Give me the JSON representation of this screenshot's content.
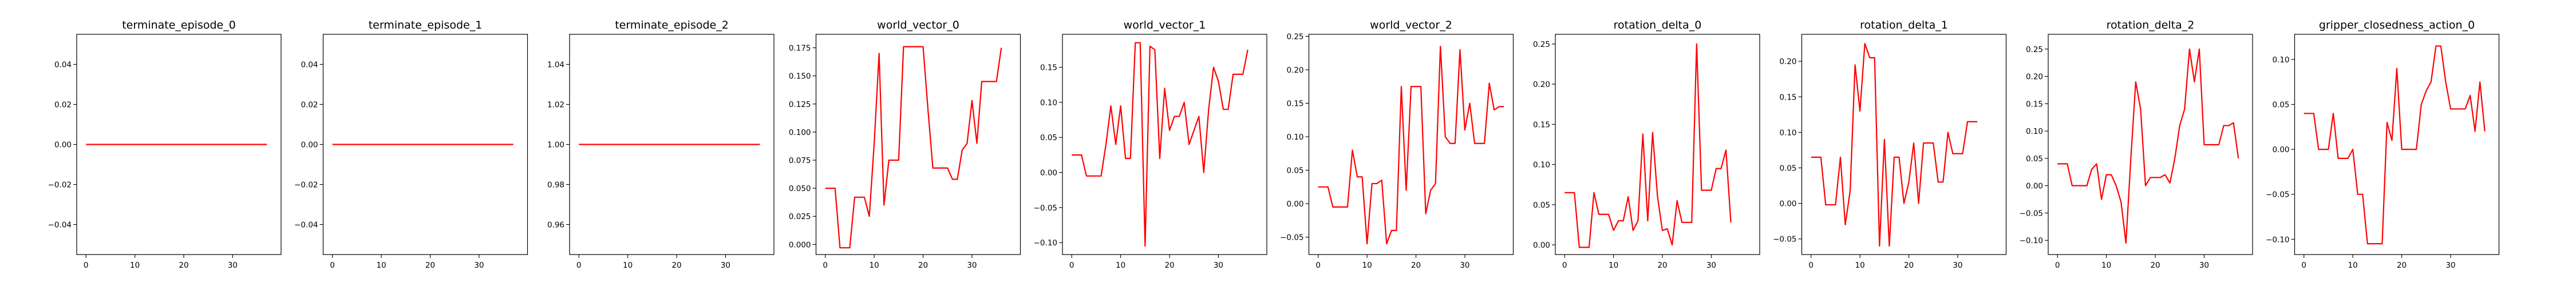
{
  "series_color": "#ff0000",
  "chart_data": [
    {
      "type": "line",
      "title": "terminate_episode_0",
      "ylim": [
        -0.055,
        0.055
      ],
      "xlim": [
        -1.9,
        39.9
      ],
      "yticks": [
        -0.04,
        -0.02,
        0.0,
        0.02,
        0.04
      ],
      "ytick_labels": [
        "−0.04",
        "−0.02",
        "0.00",
        "0.02",
        "0.04"
      ],
      "xticks": [
        0,
        10,
        20,
        30
      ],
      "xtick_labels": [
        "0",
        "10",
        "20",
        "30"
      ],
      "values": [
        0,
        0,
        0,
        0,
        0,
        0,
        0,
        0,
        0,
        0,
        0,
        0,
        0,
        0,
        0,
        0,
        0,
        0,
        0,
        0,
        0,
        0,
        0,
        0,
        0,
        0,
        0,
        0,
        0,
        0,
        0,
        0,
        0,
        0,
        0,
        0,
        0,
        0
      ]
    },
    {
      "type": "line",
      "title": "terminate_episode_1",
      "ylim": [
        -0.055,
        0.055
      ],
      "xlim": [
        -1.9,
        39.9
      ],
      "yticks": [
        -0.04,
        -0.02,
        0.0,
        0.02,
        0.04
      ],
      "ytick_labels": [
        "−0.04",
        "−0.02",
        "0.00",
        "0.02",
        "0.04"
      ],
      "xticks": [
        0,
        10,
        20,
        30
      ],
      "xtick_labels": [
        "0",
        "10",
        "20",
        "30"
      ],
      "values": [
        0,
        0,
        0,
        0,
        0,
        0,
        0,
        0,
        0,
        0,
        0,
        0,
        0,
        0,
        0,
        0,
        0,
        0,
        0,
        0,
        0,
        0,
        0,
        0,
        0,
        0,
        0,
        0,
        0,
        0,
        0,
        0,
        0,
        0,
        0,
        0,
        0,
        0
      ]
    },
    {
      "type": "line",
      "title": "terminate_episode_2",
      "ylim": [
        0.945,
        1.055
      ],
      "xlim": [
        -1.9,
        39.9
      ],
      "yticks": [
        0.96,
        0.98,
        1.0,
        1.02,
        1.04
      ],
      "ytick_labels": [
        "0.96",
        "0.98",
        "1.00",
        "1.02",
        "1.04"
      ],
      "xticks": [
        0,
        10,
        20,
        30
      ],
      "xtick_labels": [
        "0",
        "10",
        "20",
        "30"
      ],
      "values": [
        1,
        1,
        1,
        1,
        1,
        1,
        1,
        1,
        1,
        1,
        1,
        1,
        1,
        1,
        1,
        1,
        1,
        1,
        1,
        1,
        1,
        1,
        1,
        1,
        1,
        1,
        1,
        1,
        1,
        1,
        1,
        1,
        1,
        1,
        1,
        1,
        1,
        1
      ]
    },
    {
      "type": "line",
      "title": "world_vector_0",
      "ylim": [
        -0.009,
        0.187
      ],
      "xlim": [
        -1.9,
        39.9
      ],
      "yticks": [
        0.0,
        0.025,
        0.05,
        0.075,
        0.1,
        0.125,
        0.15,
        0.175
      ],
      "ytick_labels": [
        "0.000",
        "0.025",
        "0.050",
        "0.075",
        "0.100",
        "0.125",
        "0.150",
        "0.175"
      ],
      "xticks": [
        0,
        10,
        20,
        30
      ],
      "xtick_labels": [
        "0",
        "10",
        "20",
        "30"
      ],
      "values": [
        0.05,
        0.05,
        0.05,
        -0.003,
        -0.003,
        -0.003,
        0.042,
        0.042,
        0.042,
        0.025,
        0.09,
        0.17,
        0.035,
        0.075,
        0.075,
        0.075,
        0.176,
        0.176,
        0.176,
        0.176,
        0.176,
        0.12,
        0.068,
        0.068,
        0.068,
        0.068,
        0.058,
        0.058,
        0.084,
        0.09,
        0.128,
        0.09,
        0.145,
        0.145,
        0.145,
        0.145,
        0.175
      ]
    },
    {
      "type": "line",
      "title": "world_vector_1",
      "ylim": [
        -0.117,
        0.197
      ],
      "xlim": [
        -1.9,
        39.9
      ],
      "yticks": [
        -0.1,
        -0.05,
        0.0,
        0.05,
        0.1,
        0.15
      ],
      "ytick_labels": [
        "−0.10",
        "−0.05",
        "0.00",
        "0.05",
        "0.10",
        "0.15"
      ],
      "xticks": [
        0,
        10,
        20,
        30
      ],
      "xtick_labels": [
        "0",
        "10",
        "20",
        "30"
      ],
      "values": [
        0.025,
        0.025,
        0.025,
        -0.005,
        -0.005,
        -0.005,
        -0.005,
        0.04,
        0.095,
        0.04,
        0.095,
        0.02,
        0.02,
        0.185,
        0.185,
        -0.105,
        0.18,
        0.175,
        0.02,
        0.12,
        0.06,
        0.08,
        0.08,
        0.1,
        0.04,
        0.06,
        0.08,
        0.0,
        0.09,
        0.15,
        0.13,
        0.09,
        0.09,
        0.14,
        0.14,
        0.14,
        0.175
      ]
    },
    {
      "type": "line",
      "title": "world_vector_2",
      "ylim": [
        -0.076,
        0.253
      ],
      "xlim": [
        -1.9,
        39.9
      ],
      "yticks": [
        -0.05,
        0.0,
        0.05,
        0.1,
        0.15,
        0.2,
        0.25
      ],
      "ytick_labels": [
        "−0.05",
        "0.00",
        "0.05",
        "0.10",
        "0.15",
        "0.20",
        "0.25"
      ],
      "xticks": [
        0,
        10,
        20,
        30
      ],
      "xtick_labels": [
        "0",
        "10",
        "20",
        "30"
      ],
      "values": [
        0.025,
        0.025,
        0.025,
        -0.005,
        -0.005,
        -0.005,
        -0.005,
        0.08,
        0.04,
        0.04,
        -0.06,
        0.03,
        0.03,
        0.035,
        -0.06,
        -0.04,
        -0.04,
        0.175,
        0.02,
        0.175,
        0.175,
        0.175,
        -0.015,
        0.02,
        0.03,
        0.235,
        0.1,
        0.09,
        0.09,
        0.23,
        0.11,
        0.15,
        0.09,
        0.09,
        0.09,
        0.18,
        0.14,
        0.145,
        0.145
      ]
    },
    {
      "type": "line",
      "title": "rotation_delta_0",
      "ylim": [
        -0.012,
        0.262
      ],
      "xlim": [
        -1.9,
        39.9
      ],
      "yticks": [
        0.0,
        0.05,
        0.1,
        0.15,
        0.2,
        0.25
      ],
      "ytick_labels": [
        "0.00",
        "0.05",
        "0.10",
        "0.15",
        "0.20",
        "0.25"
      ],
      "xticks": [
        0,
        10,
        20,
        30
      ],
      "xtick_labels": [
        "0",
        "10",
        "20",
        "30"
      ],
      "values": [
        0.065,
        0.065,
        0.065,
        -0.003,
        -0.003,
        -0.003,
        0.065,
        0.038,
        0.038,
        0.038,
        0.018,
        0.03,
        0.03,
        0.06,
        0.018,
        0.03,
        0.138,
        0.03,
        0.14,
        0.06,
        0.018,
        0.02,
        0.0,
        0.055,
        0.028,
        0.028,
        0.028,
        0.25,
        0.068,
        0.068,
        0.068,
        0.095,
        0.095,
        0.118,
        0.028
      ]
    },
    {
      "type": "line",
      "title": "rotation_delta_1",
      "ylim": [
        -0.072,
        0.238
      ],
      "xlim": [
        -1.9,
        39.9
      ],
      "yticks": [
        -0.05,
        0.0,
        0.05,
        0.1,
        0.15,
        0.2
      ],
      "ytick_labels": [
        "−0.05",
        "0.00",
        "0.05",
        "0.10",
        "0.15",
        "0.20"
      ],
      "xticks": [
        0,
        10,
        20,
        30
      ],
      "xtick_labels": [
        "0",
        "10",
        "20",
        "30"
      ],
      "values": [
        0.065,
        0.065,
        0.065,
        -0.002,
        -0.002,
        -0.002,
        0.065,
        -0.03,
        0.018,
        0.195,
        0.13,
        0.225,
        0.205,
        0.205,
        -0.06,
        0.09,
        -0.06,
        0.065,
        0.065,
        0.0,
        0.03,
        0.085,
        0.0,
        0.085,
        0.085,
        0.085,
        0.03,
        0.03,
        0.1,
        0.07,
        0.07,
        0.07,
        0.115,
        0.115,
        0.115
      ]
    },
    {
      "type": "line",
      "title": "rotation_delta_2",
      "ylim": [
        -0.126,
        0.277
      ],
      "xlim": [
        -1.9,
        39.9
      ],
      "yticks": [
        -0.1,
        -0.05,
        0.0,
        0.05,
        0.1,
        0.15,
        0.2,
        0.25
      ],
      "ytick_labels": [
        "−0.10",
        "−0.05",
        "0.00",
        "0.05",
        "0.10",
        "0.15",
        "0.20",
        "0.25"
      ],
      "xticks": [
        0,
        10,
        20,
        30
      ],
      "xtick_labels": [
        "0",
        "10",
        "20",
        "30"
      ],
      "values": [
        0.04,
        0.04,
        0.04,
        0.0,
        0.0,
        0.0,
        0.0,
        0.03,
        0.04,
        -0.025,
        0.02,
        0.02,
        0.0,
        -0.03,
        -0.105,
        0.05,
        0.19,
        0.14,
        0.0,
        0.015,
        0.015,
        0.015,
        0.02,
        0.005,
        0.05,
        0.11,
        0.14,
        0.25,
        0.19,
        0.25,
        0.075,
        0.075,
        0.075,
        0.075,
        0.11,
        0.11,
        0.115,
        0.05
      ]
    },
    {
      "type": "line",
      "title": "gripper_closedness_action_0",
      "ylim": [
        -0.117,
        0.128
      ],
      "xlim": [
        -1.9,
        39.9
      ],
      "yticks": [
        -0.1,
        -0.05,
        0.0,
        0.05,
        0.1
      ],
      "ytick_labels": [
        "−0.10",
        "−0.05",
        "0.00",
        "0.05",
        "0.10"
      ],
      "xticks": [
        0,
        10,
        20,
        30
      ],
      "xtick_labels": [
        "0",
        "10",
        "20",
        "30"
      ],
      "values": [
        0.04,
        0.04,
        0.04,
        0.0,
        0.0,
        0.0,
        0.04,
        -0.01,
        -0.01,
        -0.01,
        0.0,
        -0.05,
        -0.05,
        -0.105,
        -0.105,
        -0.105,
        -0.105,
        0.03,
        0.01,
        0.09,
        0.0,
        0.0,
        0.0,
        0.0,
        0.05,
        0.065,
        0.075,
        0.115,
        0.115,
        0.075,
        0.045,
        0.045,
        0.045,
        0.045,
        0.06,
        0.02,
        0.075,
        0.02
      ]
    }
  ]
}
